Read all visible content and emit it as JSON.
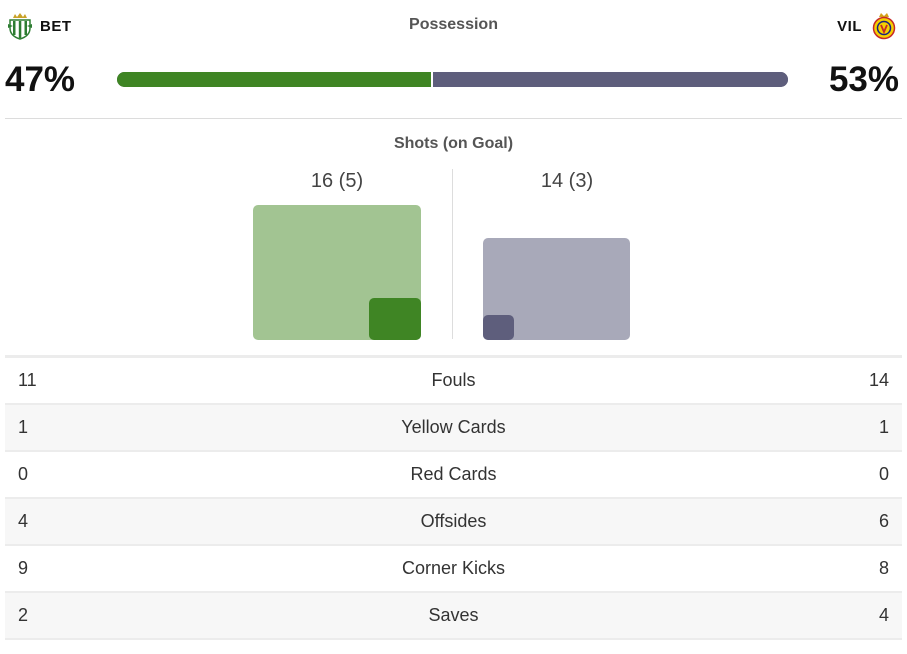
{
  "home": {
    "abbr": "BET",
    "crest_icon": "real-betis-crest-icon",
    "color": "#3f8524",
    "light_color": "#a2c492"
  },
  "away": {
    "abbr": "VIL",
    "crest_icon": "villarreal-crest-icon",
    "color": "#5e5e7c",
    "light_color": "#a8a9b9"
  },
  "possession": {
    "title": "Possession",
    "home": "47%",
    "away": "53%",
    "home_fraction": 0.47,
    "away_fraction": 0.53
  },
  "shots": {
    "title": "Shots (on Goal)",
    "home_label": "16 (5)",
    "away_label": "14 (3)",
    "home_total": 16,
    "home_on_goal": 5,
    "away_total": 14,
    "away_on_goal": 3
  },
  "stats": [
    {
      "label": "Fouls",
      "home": "11",
      "away": "14"
    },
    {
      "label": "Yellow Cards",
      "home": "1",
      "away": "1"
    },
    {
      "label": "Red Cards",
      "home": "0",
      "away": "0"
    },
    {
      "label": "Offsides",
      "home": "4",
      "away": "6"
    },
    {
      "label": "Corner Kicks",
      "home": "9",
      "away": "8"
    },
    {
      "label": "Saves",
      "home": "2",
      "away": "4"
    }
  ]
}
